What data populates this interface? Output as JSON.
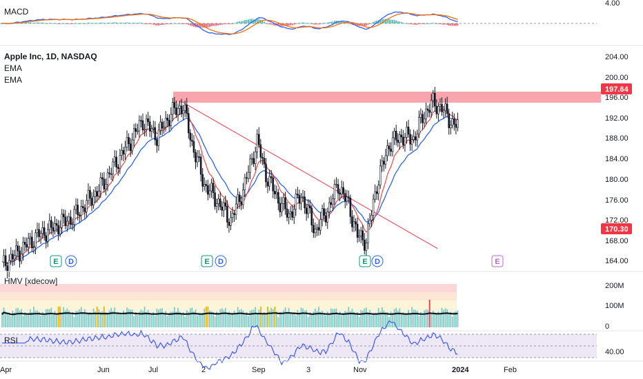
{
  "symbol": {
    "title": "Apple Inc, 1D, NASDAQ"
  },
  "indicators": {
    "ema1": "EMA",
    "ema2": "EMA",
    "macd": "MACD",
    "hmv": "HMV [xdecow]",
    "rsi": "RSI"
  },
  "price_axis": {
    "ticks": [
      "204.00",
      "200.00",
      "196.00",
      "192.00",
      "188.00",
      "184.00",
      "180.00",
      "176.00",
      "172.00",
      "168.00",
      "164.00"
    ],
    "resistance_label": "197.64",
    "last_price_label": "170.30"
  },
  "macd_axis": {
    "ticks": [
      "4.00"
    ]
  },
  "hmv_axis": {
    "ticks": [
      "200M",
      "100M",
      "0"
    ]
  },
  "rsi_axis": {
    "ticks": [
      "40.00"
    ]
  },
  "time_axis": {
    "labels": [
      "Apr",
      "Jun",
      "Jul",
      "2",
      "Sep",
      "3",
      "Nov",
      "2024",
      "Feb"
    ]
  },
  "events": [
    {
      "type": "E"
    },
    {
      "type": "D"
    },
    {
      "type": "E"
    },
    {
      "type": "D"
    },
    {
      "type": "E"
    },
    {
      "type": "D"
    },
    {
      "type": "E"
    }
  ],
  "colors": {
    "up": "#26a69a",
    "down": "#131722",
    "candle_body": "#131722",
    "ema_fast": "#ef5350",
    "ema_slow": "#2962ff",
    "resistance_zone": "#f8a5ad",
    "trendline": "#f23645",
    "badge_red": "#f23645",
    "event_green": "#089981",
    "event_blue": "#2962ff",
    "event_purple": "#ba68c8",
    "macd_line": "#2962ff",
    "signal_line": "#ff6d00",
    "rsi_line": "#3d5afe",
    "rsi_band": "#ede7f6"
  },
  "chart_data": {
    "type": "candlestick",
    "title": "Apple Inc, 1D, NASDAQ",
    "ylim": [
      162,
      206
    ],
    "x_labels": [
      "Apr",
      "Jun",
      "Jul",
      "2",
      "Sep",
      "3",
      "Nov",
      "2024",
      "Feb"
    ],
    "close_anchors": [
      {
        "i": 0,
        "c": 165
      },
      {
        "i": 20,
        "c": 171
      },
      {
        "i": 40,
        "c": 174.5
      },
      {
        "i": 55,
        "c": 180
      },
      {
        "i": 68,
        "c": 187
      },
      {
        "i": 80,
        "c": 193.5
      },
      {
        "i": 88,
        "c": 190.5
      },
      {
        "i": 96,
        "c": 195
      },
      {
        "i": 103,
        "c": 196.5
      },
      {
        "i": 108,
        "c": 189
      },
      {
        "i": 115,
        "c": 181
      },
      {
        "i": 122,
        "c": 178
      },
      {
        "i": 130,
        "c": 174
      },
      {
        "i": 137,
        "c": 180
      },
      {
        "i": 145,
        "c": 189.5
      },
      {
        "i": 150,
        "c": 183
      },
      {
        "i": 157,
        "c": 178
      },
      {
        "i": 163,
        "c": 175
      },
      {
        "i": 170,
        "c": 179
      },
      {
        "i": 178,
        "c": 172
      },
      {
        "i": 185,
        "c": 176
      },
      {
        "i": 191,
        "c": 181
      },
      {
        "i": 197,
        "c": 177
      },
      {
        "i": 202,
        "c": 171
      },
      {
        "i": 207,
        "c": 170
      },
      {
        "i": 213,
        "c": 181
      },
      {
        "i": 220,
        "c": 189
      },
      {
        "i": 227,
        "c": 190.5
      },
      {
        "i": 234,
        "c": 190
      },
      {
        "i": 240,
        "c": 195
      },
      {
        "i": 245,
        "c": 197
      },
      {
        "i": 250,
        "c": 196
      },
      {
        "i": 256,
        "c": 193
      },
      {
        "i": 259,
        "c": 192.5
      }
    ],
    "resistance_zone": [
      195.5,
      197.64
    ],
    "trendline": [
      {
        "i": 101,
        "price": 197.5
      },
      {
        "i": 224,
        "price": 170.5
      }
    ],
    "last_price": 170.3
  }
}
